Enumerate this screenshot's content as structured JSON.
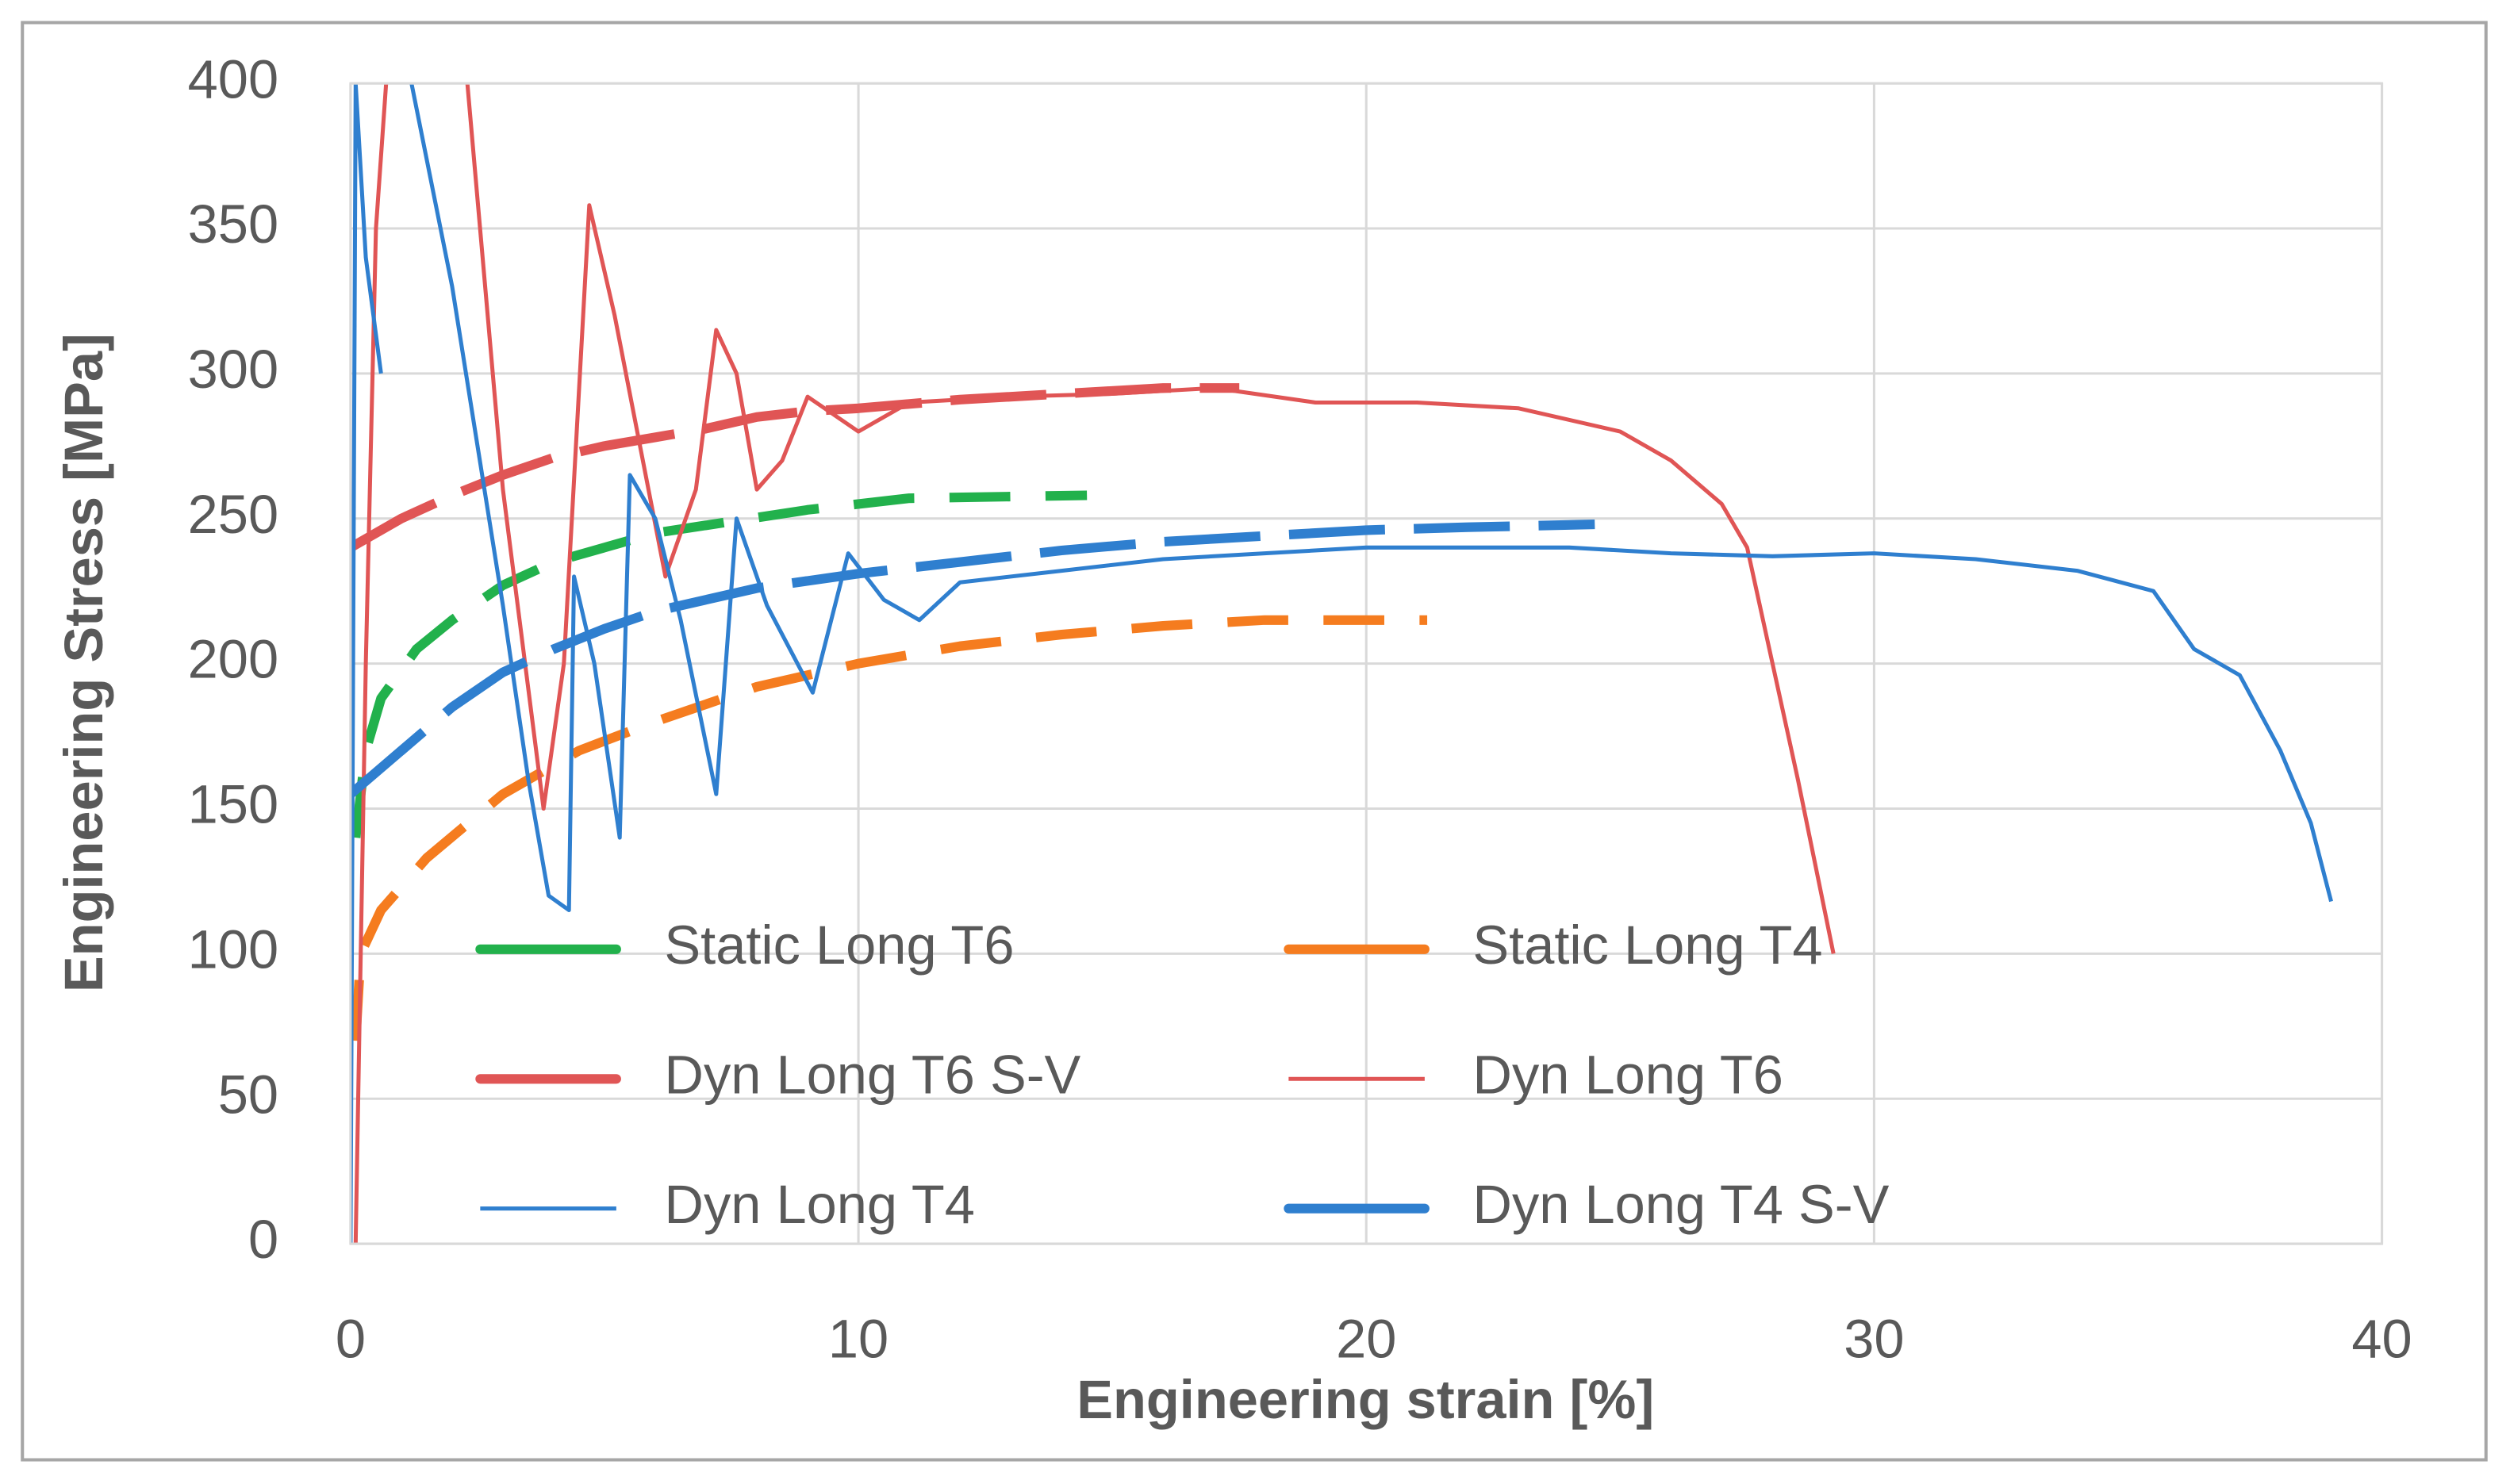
{
  "chart_data": {
    "type": "line",
    "x_label": "Engineering strain [%]",
    "y_label": "Engineering Stress [MPa]",
    "xlim": [
      0,
      40
    ],
    "xticks": [
      0,
      10,
      20,
      30,
      40
    ],
    "ylim": [
      0,
      400
    ],
    "yticks": [
      0,
      50,
      100,
      150,
      200,
      250,
      300,
      350,
      400
    ],
    "grid": true,
    "series": [
      {
        "name": "Static Long T6",
        "color": "#22b14c",
        "style": "dashed",
        "x": [
          0.1,
          0.3,
          0.6,
          1.3,
          2,
          3,
          4,
          5,
          6,
          7.5,
          9,
          11,
          14.5
        ],
        "values": [
          140,
          170,
          188,
          205,
          215,
          227,
          235,
          240,
          245,
          249,
          253,
          257,
          258
        ]
      },
      {
        "name": "Static Long T4",
        "color": "#f57c1f",
        "style": "dashed",
        "x": [
          0.1,
          0.2,
          0.6,
          1.5,
          3,
          4.5,
          6,
          8,
          10,
          12,
          14,
          16,
          18,
          20,
          21.2
        ],
        "values": [
          70,
          100,
          115,
          133,
          155,
          170,
          180,
          192,
          200,
          206,
          210,
          213,
          215,
          215,
          215
        ]
      },
      {
        "name": "Dyn Long T6 S-V",
        "color": "#e05555",
        "style": "long-dashed",
        "x": [
          0,
          1,
          2,
          3,
          4,
          5,
          6,
          7,
          8,
          9,
          10,
          12,
          14,
          16,
          17.5
        ],
        "values": [
          240,
          250,
          258,
          265,
          271,
          275,
          278,
          281,
          285,
          287,
          288,
          291,
          293,
          295,
          295
        ]
      },
      {
        "name": "Dyn Long T6",
        "color": "#e05555",
        "style": "solid",
        "x": [
          0.1,
          0.3,
          0.5,
          0.7,
          null,
          2.3,
          3,
          3.8,
          4.2,
          4.7,
          5.2,
          6.2,
          6.8,
          7.2,
          7.6,
          8,
          8.5,
          9,
          10,
          11,
          13,
          15,
          17,
          19,
          21,
          23,
          25,
          26,
          27,
          27.5,
          28,
          28.5,
          29.2
        ],
        "values": [
          0,
          200,
          350,
          400,
          null,
          400,
          260,
          150,
          200,
          358,
          320,
          230,
          260,
          315,
          300,
          260,
          270,
          292,
          280,
          290,
          292,
          293,
          295,
          290,
          290,
          288,
          280,
          270,
          255,
          240,
          200,
          160,
          100
        ]
      },
      {
        "name": "Dyn Long T4",
        "color": "#2f7fcf",
        "style": "solid",
        "x": [
          0,
          0.1,
          0.3,
          0.6,
          null,
          1.2,
          2,
          3,
          3.5,
          3.9,
          4.3,
          4.4,
          4.8,
          5.3,
          5.5,
          6,
          6.5,
          7.2,
          7.6,
          8.2,
          9.1,
          9.8,
          10.5,
          11.2,
          12,
          14,
          16,
          18,
          20,
          22,
          24,
          26,
          28,
          30,
          32,
          34,
          35.5,
          36.3,
          37.2,
          38,
          38.6,
          39
        ],
        "values": [
          0,
          400,
          340,
          300,
          null,
          400,
          330,
          220,
          160,
          120,
          115,
          230,
          200,
          140,
          265,
          250,
          215,
          155,
          250,
          220,
          190,
          238,
          222,
          215,
          228,
          232,
          236,
          238,
          240,
          240,
          240,
          238,
          237,
          238,
          236,
          232,
          225,
          205,
          196,
          170,
          145,
          118
        ]
      },
      {
        "name": "Dyn Long T4 S-V",
        "color": "#2f7fcf",
        "style": "long-dashed",
        "x": [
          0,
          1,
          2,
          3,
          4,
          5,
          6,
          7,
          8,
          10,
          12,
          14,
          16,
          18,
          20,
          22,
          24.5
        ],
        "values": [
          155,
          170,
          185,
          197,
          205,
          212,
          218,
          222,
          226,
          231,
          235,
          239,
          242,
          244,
          246,
          247,
          248
        ]
      }
    ]
  }
}
